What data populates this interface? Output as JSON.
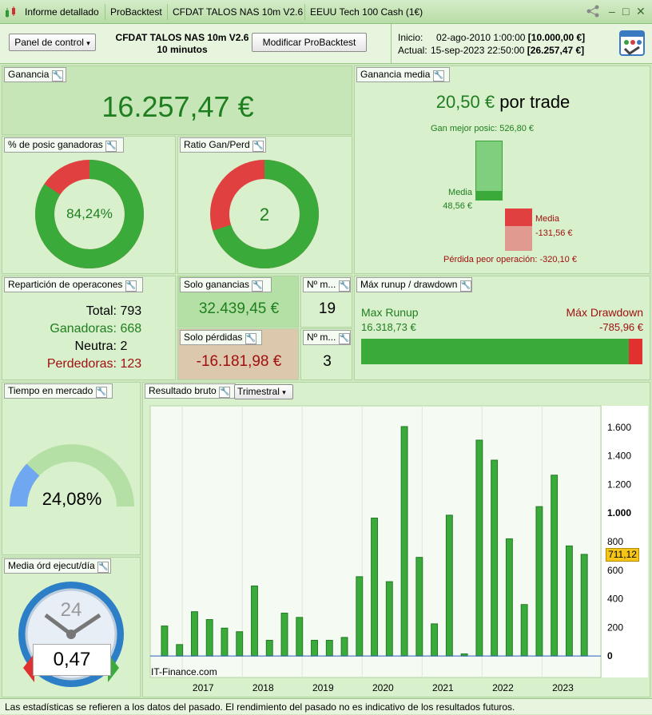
{
  "titlebar": {
    "tabs": [
      "Informe detallado",
      "ProBacktest",
      "CFDAT TALOS NAS 10m V2.6",
      "EEUU Tech 100 Cash (1€)"
    ]
  },
  "header": {
    "panel_control": "Panel de control",
    "strategy_name": "CFDAT TALOS NAS 10m V2.6",
    "timeframe": "10 minutos",
    "modify_button": "Modificar ProBacktest",
    "start_label": "Inicio:",
    "start_date": "02-ago-2010 1:00:00",
    "start_value": "[10.000,00 €]",
    "current_label": "Actual:",
    "current_date": "15-sep-2023 22:50:00",
    "current_value": "[26.257,47 €]"
  },
  "ganancia": {
    "title": "Ganancia",
    "value": "16.257,47 €"
  },
  "ganancia_media": {
    "title": "Ganancia media",
    "value": "20,50 €",
    "suffix": "por trade",
    "best_label": "Gan mejor posic: 526,80 €",
    "media_win_label": "Media",
    "media_win_value": "48,56 €",
    "media_loss_label": "Media",
    "media_loss_value": "-131,56 €",
    "worst_label": "Pérdida peor operación: -320,10 €",
    "best": 526.8,
    "avg_win": 48.56,
    "avg_loss": 131.56,
    "worst": 320.1
  },
  "pct_ganadoras": {
    "title": "% de posic ganadoras",
    "value": "84,24%",
    "fraction": 0.8424
  },
  "ratio": {
    "title": "Ratio Gan/Perd",
    "value": "2",
    "fraction": 0.7
  },
  "reparticion": {
    "title": "Repartición de operacones",
    "total_label": "Total:",
    "total": "793",
    "win_label": "Ganadoras:",
    "win": "668",
    "neutral_label": "Neutra:",
    "neutral": "2",
    "loss_label": "Perdedoras:",
    "loss": "123"
  },
  "solo_ganancias": {
    "title": "Solo ganancias",
    "value": "32.439,45 €",
    "n_title": "Nº m...",
    "n": "19"
  },
  "solo_perdidas": {
    "title": "Solo pérdidas",
    "value": "-16.181,98 €",
    "n_title": "Nº m...",
    "n": "3"
  },
  "runup": {
    "title": "Máx runup / drawdown",
    "runup_label": "Max Runup",
    "runup_value": "16.318,73 €",
    "dd_label": "Máx Drawdown",
    "dd_value": "-785,96 €",
    "runup": 16318.73,
    "dd": 785.96
  },
  "tiempo": {
    "title": "Tiempo en mercado",
    "value": "24,08%",
    "fraction": 0.2408
  },
  "media_ord": {
    "title": "Media órd ejecut/día",
    "value": "0,47",
    "clock_label": "24"
  },
  "resultado": {
    "title": "Resultado bruto",
    "period": "Trimestral",
    "watermark": "IT-Finance.com",
    "current_label": "711,12"
  },
  "chart_data": {
    "type": "bar",
    "ylim": [
      -150,
      1750
    ],
    "yticks": [
      0,
      200,
      400,
      600,
      800,
      1000,
      1200,
      1400,
      1600
    ],
    "ytick_labels": [
      "0",
      "200",
      "400",
      "600",
      "800",
      "1.000",
      "1.200",
      "1.400",
      "1.600"
    ],
    "xtick_labels": [
      "2017",
      "2018",
      "2019",
      "2020",
      "2021",
      "2022",
      "2023"
    ],
    "xtick_index": [
      2.5,
      6.5,
      10.5,
      14.5,
      18.5,
      22.5,
      26.5
    ],
    "values": [
      210,
      80,
      310,
      255,
      195,
      170,
      490,
      110,
      300,
      270,
      110,
      110,
      130,
      555,
      965,
      520,
      1605,
      690,
      225,
      985,
      15,
      1510,
      1370,
      820,
      360,
      1045,
      1265,
      770,
      711
    ],
    "current_value": 711.12
  },
  "footer": {
    "text": "Las estadísticas se refieren a los datos del pasado. El rendimiento del pasado no es indicativo de los resultados futuros."
  }
}
